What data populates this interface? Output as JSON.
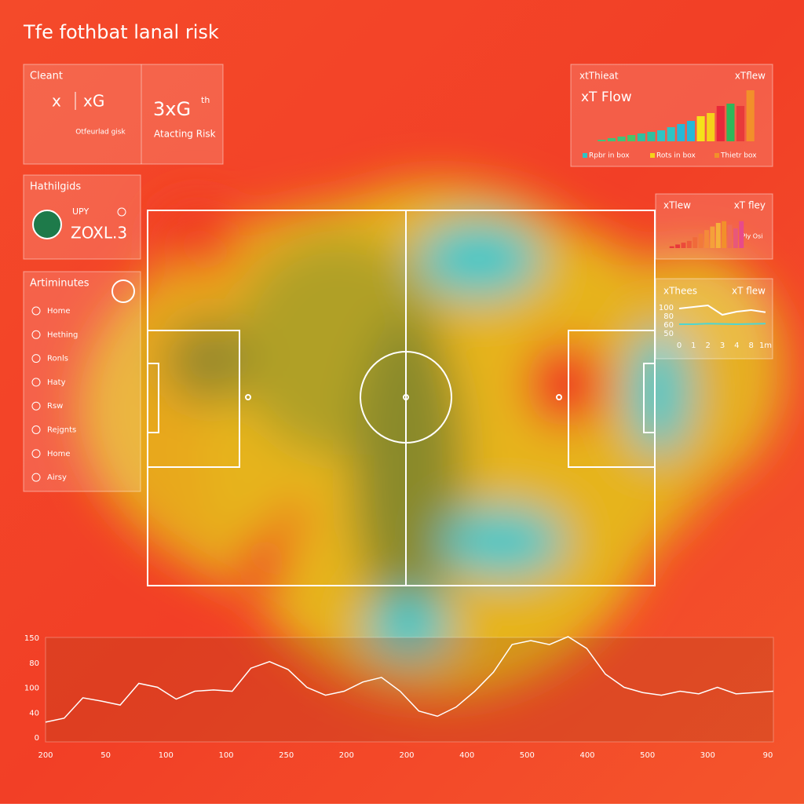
{
  "header": {
    "title": "Tfe fothbat lanal risk"
  },
  "stat_panel": {
    "label": "Cleant",
    "x": "x",
    "xg": "xG",
    "note": "Otfeurlad gisk",
    "big": "3xG",
    "sup": "th",
    "caption": "Atacting Risk"
  },
  "highlights": {
    "title": "Hathilgids",
    "tag": "UPY",
    "value": "ZOXL.3"
  },
  "menu": {
    "title": "Artiminutes",
    "items": [
      "Home",
      "Hething",
      "Ronls",
      "Haty",
      "Rsw",
      "Rejgnts",
      "Home",
      "Airsy"
    ]
  },
  "chart_data": [
    {
      "type": "bar",
      "title": "xtThieat",
      "label": "xTflew",
      "subtitle": "xT Flow",
      "values": [
        2,
        4,
        6,
        8,
        10,
        12,
        14,
        18,
        22,
        26,
        32,
        36,
        45,
        48,
        45,
        65
      ],
      "colors": [
        "#3ec47a",
        "#3ec47a",
        "#3ec47a",
        "#48c46a",
        "#2fc0a0",
        "#2fc0a0",
        "#2ec4c4",
        "#2ec4c4",
        "#26b8d8",
        "#26b8d8",
        "#f5e21a",
        "#f5d21a",
        "#e8283a",
        "#2eb85a",
        "#e83a3a",
        "#f2902a"
      ],
      "ylim": [
        0,
        70
      ],
      "legend": [
        {
          "name": "Rpbr in box",
          "color": "#2ec4c4"
        },
        {
          "name": "Rots in box",
          "color": "#f5d21a"
        },
        {
          "name": "Thietr box",
          "color": "#f2902a"
        }
      ]
    },
    {
      "type": "bar",
      "title": "xTlew",
      "label": "xT fley",
      "note": "Ply Osi",
      "values": [
        2,
        4,
        6,
        8,
        12,
        16,
        20,
        24,
        28,
        30,
        26,
        22,
        30
      ],
      "colors": [
        "#e8383a",
        "#e8383a",
        "#ec4a3a",
        "#ee5a3a",
        "#f06a3a",
        "#f27a3a",
        "#f48a3a",
        "#f5a03a",
        "#f5b03a",
        "#f2902a",
        "#ee6a5a",
        "#e8587a",
        "#e84a8a"
      ],
      "ylim": [
        0,
        35
      ]
    },
    {
      "type": "line",
      "title": "xThees",
      "label": "xT flew",
      "y_labels": [
        "100",
        "80",
        "60",
        "50"
      ],
      "x_labels": [
        "0",
        "1",
        "2",
        "3",
        "4",
        "8",
        "1m"
      ],
      "series": [
        {
          "color": "#ffffff",
          "values": [
            8,
            8.5,
            9,
            6,
            7,
            7.5,
            6.8
          ]
        },
        {
          "color": "#4fd6d0",
          "values": [
            3,
            3,
            3.2,
            3.1,
            3,
            3.1,
            3.2
          ]
        }
      ],
      "ylim": [
        0,
        10
      ]
    },
    {
      "type": "line",
      "color": "#ffffff",
      "y_labels": [
        "150",
        "80",
        "100",
        "40",
        "0"
      ],
      "x_labels": [
        "200",
        "50",
        "100",
        "100",
        "250",
        "200",
        "200",
        "400",
        "500",
        "400",
        "500",
        "300",
        "90"
      ],
      "values": [
        24,
        30,
        61,
        56,
        50,
        83,
        77,
        59,
        71,
        73,
        71,
        106,
        116,
        104,
        77,
        65,
        71,
        85,
        92,
        71,
        41,
        33,
        47,
        71,
        100,
        142,
        148,
        142,
        154,
        136,
        97,
        77,
        69,
        65,
        71,
        67,
        77,
        67,
        69,
        71
      ],
      "ylim": [
        0,
        160
      ]
    }
  ]
}
